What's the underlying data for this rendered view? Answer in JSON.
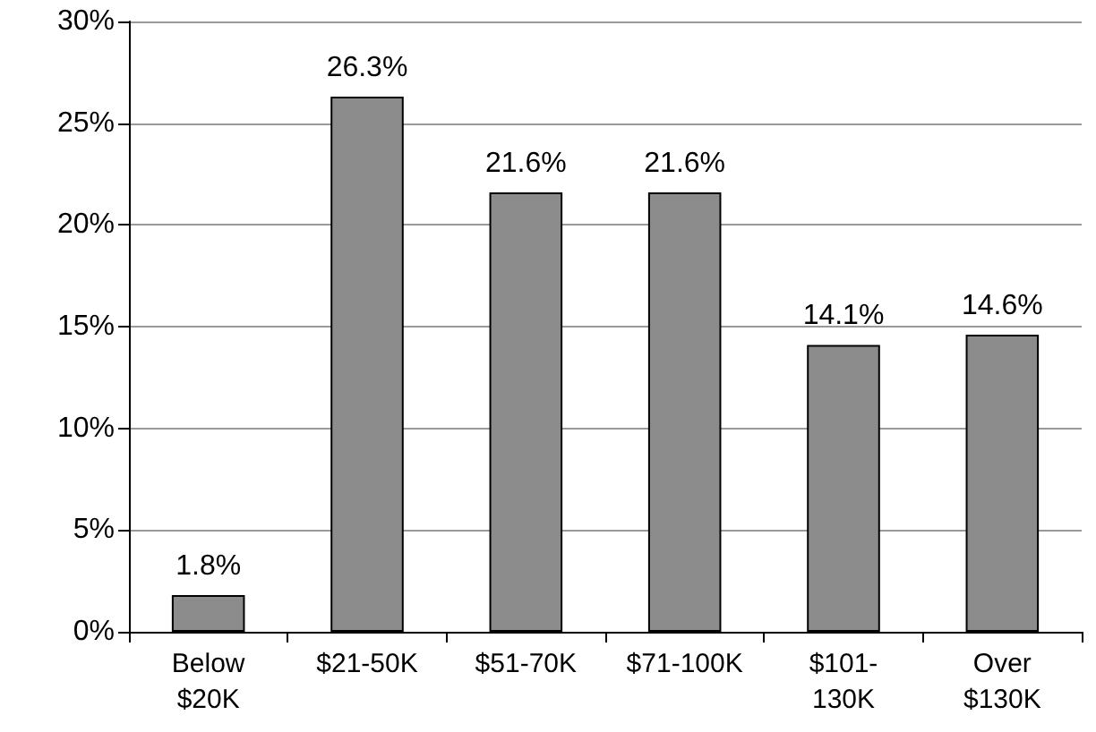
{
  "chart_data": {
    "type": "bar",
    "categories": [
      "Below\n$20K",
      "$21-50K",
      "$51-70K",
      "$71-100K",
      "$101-\n130K",
      "Over\n$130K"
    ],
    "values": [
      1.8,
      26.3,
      21.6,
      21.6,
      14.1,
      14.6
    ],
    "value_labels": [
      "1.8%",
      "26.3%",
      "21.6%",
      "21.6%",
      "14.1%",
      "14.6%"
    ],
    "color": "#8c8c8c",
    "ylim": [
      0,
      30
    ],
    "yticks": [
      {
        "value": 0,
        "label": "0%"
      },
      {
        "value": 5,
        "label": "5%"
      },
      {
        "value": 10,
        "label": "10%"
      },
      {
        "value": 15,
        "label": "15%"
      },
      {
        "value": 20,
        "label": "20%"
      },
      {
        "value": 25,
        "label": "25%"
      },
      {
        "value": 30,
        "label": "30%"
      }
    ],
    "grid": "y"
  }
}
